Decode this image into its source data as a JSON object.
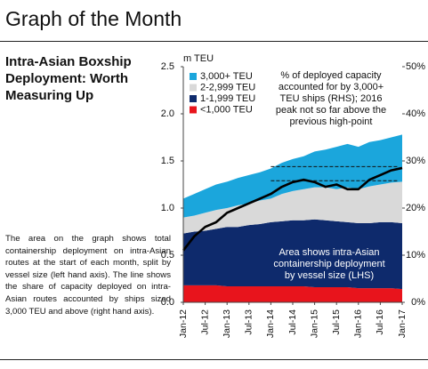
{
  "header": {
    "title": "Graph of the Month"
  },
  "sidebar": {
    "heading": "Intra-Asian Boxship Deployment: Worth Measuring Up",
    "body": "The area on the graph shows total containership deployment on intra-Asian routes at the start of each month, split by vessel size (left hand axis). The line shows the share of capacity deployed on intra-Asian routes accounted by ships sized 3,000 TEU and above (right hand axis)."
  },
  "chart_data": {
    "type": "stacked_area",
    "y_label": "m TEU",
    "categories": [
      "Jan-12",
      null,
      "Jul-12",
      null,
      "Jan-13",
      null,
      "Jul-13",
      null,
      "Jan-14",
      null,
      "Jul-14",
      null,
      "Jan-15",
      null,
      "Jul-15",
      null,
      "Jan-16",
      null,
      "Jul-16",
      null,
      "Jan-17"
    ],
    "series": [
      {
        "name": "3,000+ TEU",
        "color": "#1ba6dc",
        "values": [
          0.2,
          0.23,
          0.25,
          0.27,
          0.28,
          0.29,
          0.3,
          0.3,
          0.32,
          0.33,
          0.34,
          0.35,
          0.38,
          0.4,
          0.45,
          0.46,
          0.45,
          0.47,
          0.47,
          0.48,
          0.5
        ]
      },
      {
        "name": "2-2,999 TEU",
        "color": "#d9d9d9",
        "values": [
          0.17,
          0.17,
          0.19,
          0.2,
          0.2,
          0.23,
          0.23,
          0.25,
          0.25,
          0.29,
          0.31,
          0.33,
          0.34,
          0.35,
          0.34,
          0.37,
          0.36,
          0.39,
          0.4,
          0.42,
          0.44
        ]
      },
      {
        "name": "1-1,999 TEU",
        "color": "#0e2a6c",
        "values": [
          0.55,
          0.57,
          0.58,
          0.6,
          0.63,
          0.63,
          0.65,
          0.66,
          0.68,
          0.69,
          0.7,
          0.7,
          0.72,
          0.71,
          0.7,
          0.69,
          0.69,
          0.69,
          0.7,
          0.7,
          0.7
        ]
      },
      {
        "name": "<1,000 TEU",
        "color": "#e8141c",
        "values": [
          0.18,
          0.18,
          0.18,
          0.18,
          0.17,
          0.17,
          0.17,
          0.17,
          0.17,
          0.17,
          0.17,
          0.17,
          0.16,
          0.16,
          0.16,
          0.16,
          0.15,
          0.15,
          0.15,
          0.15,
          0.14
        ]
      }
    ],
    "line": {
      "axis": "y2",
      "color": "#000000",
      "values": [
        11,
        14,
        16,
        17,
        19,
        20,
        21,
        22,
        23,
        24.5,
        25.5,
        26,
        25.5,
        24.5,
        25,
        24,
        24,
        26,
        27,
        28,
        28.5
      ]
    },
    "reference_lines_y2": [
      28.8,
      25.8
    ],
    "ylim": [
      0,
      2.5
    ],
    "yticks": [
      {
        "value": 0,
        "label": "0.0"
      },
      0.5,
      {
        "value": 1,
        "label": "1.0"
      },
      1.5,
      {
        "value": 2,
        "label": "2.0"
      },
      2.5
    ],
    "y2lim": [
      0,
      50
    ],
    "y2ticks": [
      {
        "value": 0,
        "label": "0%"
      },
      {
        "value": 10,
        "label": "10%"
      },
      {
        "value": 20,
        "label": "20%"
      },
      {
        "value": 30,
        "label": "30%"
      },
      {
        "value": 40,
        "label": "40%"
      },
      {
        "value": 50,
        "label": "50%"
      }
    ],
    "legend": "top-left",
    "annotations": [
      {
        "lines": [
          "% of deployed capacity",
          "accounted for by 3,000+",
          "TEU ships (RHS); 2016",
          "peak not so far above the",
          "previous high-point"
        ],
        "color": "#111111"
      },
      {
        "lines": [
          "Area shows intra-Asian",
          "containership deployment",
          "by vessel size (LHS)"
        ],
        "color": "#ffffff"
      }
    ]
  }
}
